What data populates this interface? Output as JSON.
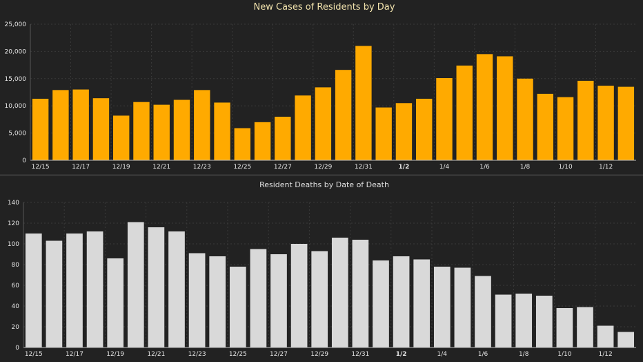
{
  "chart_data": [
    {
      "type": "bar",
      "title": "New Cases of Residents by Day",
      "xlabel": "",
      "ylabel": "",
      "ylim": [
        0,
        25000
      ],
      "yticks": [
        "0",
        "5,000",
        "10,000",
        "15,000",
        "20,000",
        "25,000"
      ],
      "ytick_values": [
        0,
        5000,
        10000,
        15000,
        20000,
        25000
      ],
      "categories": [
        "12/15",
        "12/16",
        "12/17",
        "12/18",
        "12/19",
        "12/20",
        "12/21",
        "12/22",
        "12/23",
        "12/24",
        "12/25",
        "12/26",
        "12/27",
        "12/28",
        "12/29",
        "12/30",
        "12/31",
        "1/1",
        "1/2",
        "1/3",
        "1/4",
        "1/5",
        "1/6",
        "1/7",
        "1/8",
        "1/9",
        "1/10",
        "1/11",
        "1/12",
        "1/13"
      ],
      "xtick_labels": [
        "12/15",
        "",
        "12/17",
        "",
        "12/19",
        "",
        "12/21",
        "",
        "12/23",
        "",
        "12/25",
        "",
        "12/27",
        "",
        "12/29",
        "",
        "12/31",
        "",
        "1/2",
        "",
        "1/4",
        "",
        "1/6",
        "",
        "1/8",
        "",
        "1/10",
        "",
        "1/12",
        ""
      ],
      "values": [
        11300,
        12900,
        13000,
        11400,
        8200,
        10700,
        10200,
        11100,
        12900,
        10600,
        5900,
        7000,
        8000,
        11900,
        13400,
        16600,
        21000,
        9700,
        10500,
        11300,
        15100,
        17400,
        19500,
        19100,
        15000,
        12200,
        11600,
        14600,
        13700,
        13500
      ],
      "bar_color": "#ffaa00",
      "grid": true
    },
    {
      "type": "bar",
      "title": "Resident Deaths by Date of Death",
      "xlabel": "",
      "ylabel": "",
      "ylim": [
        0,
        140
      ],
      "yticks": [
        "0",
        "20",
        "40",
        "60",
        "80",
        "100",
        "120",
        "140"
      ],
      "ytick_values": [
        0,
        20,
        40,
        60,
        80,
        100,
        120,
        140
      ],
      "categories": [
        "12/15",
        "12/16",
        "12/17",
        "12/18",
        "12/19",
        "12/20",
        "12/21",
        "12/22",
        "12/23",
        "12/24",
        "12/25",
        "12/26",
        "12/27",
        "12/28",
        "12/29",
        "12/30",
        "12/31",
        "1/1",
        "1/2",
        "1/3",
        "1/4",
        "1/5",
        "1/6",
        "1/7",
        "1/8",
        "1/9",
        "1/10",
        "1/11",
        "1/12",
        "1/13"
      ],
      "xtick_labels": [
        "12/15",
        "",
        "12/17",
        "",
        "12/19",
        "",
        "12/21",
        "",
        "12/23",
        "",
        "12/25",
        "",
        "12/27",
        "",
        "12/29",
        "",
        "12/31",
        "",
        "1/2",
        "",
        "1/4",
        "",
        "1/6",
        "",
        "1/8",
        "",
        "1/10",
        "",
        "1/12",
        ""
      ],
      "values": [
        110,
        103,
        110,
        112,
        86,
        121,
        116,
        112,
        91,
        88,
        78,
        95,
        90,
        100,
        93,
        106,
        104,
        84,
        88,
        85,
        78,
        77,
        69,
        51,
        52,
        50,
        38,
        39,
        21,
        15
      ],
      "bar_color": "#d9d9d9",
      "grid": true
    }
  ]
}
